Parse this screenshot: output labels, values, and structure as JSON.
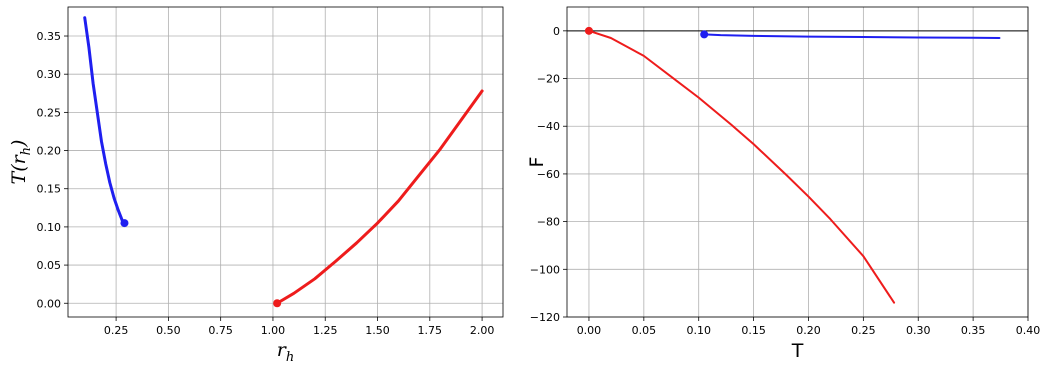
{
  "chart_data": [
    {
      "type": "line",
      "xlabel": "r",
      "xlabel_sub": "h",
      "ylabel_prefix": "T(r",
      "ylabel_sub": "h",
      "ylabel_suffix": ")",
      "xlim": [
        0.02,
        2.1
      ],
      "ylim": [
        -0.018,
        0.388
      ],
      "xticks": [
        0.25,
        0.5,
        0.75,
        1.0,
        1.25,
        1.5,
        1.75,
        2.0
      ],
      "xtick_labels": [
        "0.25",
        "0.50",
        "0.75",
        "1.00",
        "1.25",
        "1.50",
        "1.75",
        "2.00"
      ],
      "yticks": [
        0.0,
        0.05,
        0.1,
        0.15,
        0.2,
        0.25,
        0.3,
        0.35
      ],
      "ytick_labels": [
        "0.00",
        "0.05",
        "0.10",
        "0.15",
        "0.20",
        "0.25",
        "0.30",
        "0.35"
      ],
      "grid": true,
      "series": [
        {
          "color": "#1f1ff0",
          "x": [
            0.1,
            0.12,
            0.14,
            0.16,
            0.18,
            0.2,
            0.22,
            0.24,
            0.26,
            0.28,
            0.29
          ],
          "y": [
            0.374,
            0.335,
            0.288,
            0.25,
            0.212,
            0.183,
            0.158,
            0.138,
            0.122,
            0.108,
            0.105
          ],
          "endpoint": [
            0.29,
            0.105
          ]
        },
        {
          "color": "#ee1c1c",
          "x": [
            1.02,
            1.1,
            1.2,
            1.3,
            1.4,
            1.5,
            1.6,
            1.7,
            1.8,
            1.9,
            2.0
          ],
          "y": [
            0.0,
            0.013,
            0.032,
            0.055,
            0.079,
            0.105,
            0.134,
            0.168,
            0.202,
            0.24,
            0.278
          ],
          "endpoint": [
            1.02,
            0.0
          ]
        }
      ]
    },
    {
      "type": "line",
      "xlabel": "T",
      "ylabel": "F",
      "xlim": [
        -0.02,
        0.4
      ],
      "ylim": [
        -120,
        10
      ],
      "xticks": [
        0.0,
        0.05,
        0.1,
        0.15,
        0.2,
        0.25,
        0.3,
        0.35,
        0.4
      ],
      "xtick_labels": [
        "0.00",
        "0.05",
        "0.10",
        "0.15",
        "0.20",
        "0.25",
        "0.30",
        "0.35",
        "0.40"
      ],
      "yticks": [
        0,
        -20,
        -40,
        -60,
        -80,
        -100,
        -120
      ],
      "ytick_labels": [
        "0",
        "−20",
        "−40",
        "−60",
        "−80",
        "−100",
        "−120"
      ],
      "grid": true,
      "hline": 0,
      "series": [
        {
          "color": "#1f1ff0",
          "x": [
            0.105,
            0.12,
            0.15,
            0.2,
            0.25,
            0.3,
            0.35,
            0.374
          ],
          "y": [
            -1.5,
            -1.8,
            -2.1,
            -2.4,
            -2.6,
            -2.8,
            -2.9,
            -3.0
          ],
          "endpoint": [
            0.105,
            -1.5
          ]
        },
        {
          "color": "#ee1c1c",
          "x": [
            0.0,
            0.02,
            0.05,
            0.08,
            0.1,
            0.13,
            0.15,
            0.18,
            0.2,
            0.22,
            0.25,
            0.278
          ],
          "y": [
            0.0,
            -3.0,
            -10.5,
            -21.0,
            -28.0,
            -39.5,
            -47.5,
            -60.5,
            -69.5,
            -79.0,
            -94.5,
            -114.0
          ],
          "endpoint": [
            0.0,
            0.0
          ]
        }
      ]
    }
  ]
}
